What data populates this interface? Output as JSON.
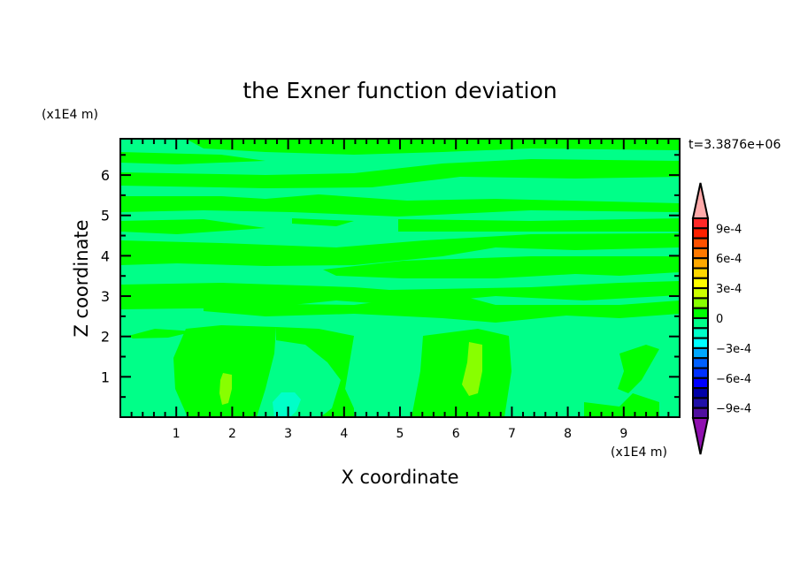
{
  "chart_data": {
    "type": "contour",
    "title": "the Exner function deviation",
    "xlabel": "X coordinate",
    "ylabel": "Z coordinate",
    "x_unit_label": "(x1E4 m)",
    "y_unit_label": "(x1E4 m)",
    "annotation": "t=3.3876e+06",
    "xlim": [
      0,
      10
    ],
    "ylim": [
      0,
      6.9
    ],
    "x_ticks": [
      1,
      2,
      3,
      4,
      5,
      6,
      7,
      8,
      9
    ],
    "x_tick_labels": [
      "1",
      "2",
      "3",
      "4",
      "5",
      "6",
      "7",
      "8",
      "9"
    ],
    "y_ticks": [
      1,
      2,
      3,
      4,
      5,
      6
    ],
    "y_tick_labels": [
      "1",
      "2",
      "3",
      "4",
      "5",
      "6"
    ],
    "colorbar": {
      "levels_min": -0.001,
      "levels_max": 0.001,
      "level_step": 0.0001,
      "extend": "both",
      "labels": [
        {
          "value": 0.0009,
          "text": "9e-4"
        },
        {
          "value": 0.0006,
          "text": "6e-4"
        },
        {
          "value": 0.0003,
          "text": "3e-4"
        },
        {
          "value": 0,
          "text": "0"
        },
        {
          "value": -0.0003,
          "text": "−3e-4"
        },
        {
          "value": -0.0006,
          "text": "−6e-4"
        },
        {
          "value": -0.0009,
          "text": "−9e-4"
        }
      ],
      "colors_top_to_bottom": [
        "#ff2828",
        "#ff2000",
        "#ff5000",
        "#ff7800",
        "#ffa800",
        "#ffd800",
        "#ffff00",
        "#ccff00",
        "#88ff00",
        "#00ff00",
        "#00ff88",
        "#00ffc8",
        "#00ffff",
        "#00a8ff",
        "#0060ff",
        "#0030ff",
        "#0000ff",
        "#0000a8",
        "#2010a8",
        "#5010a0"
      ],
      "over_color": "#ffaaaa",
      "under_color": "#9010b0"
    },
    "field_colors": {
      "background": "#00ff88",
      "positive_band": "#00ff00",
      "strong_positive": "#88ff00",
      "negative": "#00ffc8"
    }
  }
}
